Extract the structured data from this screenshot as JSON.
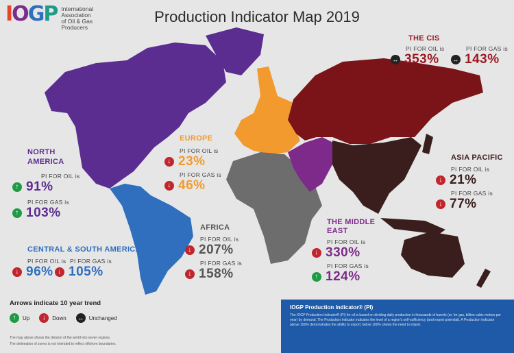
{
  "title": "Production Indicator Map 2019",
  "logo": {
    "mark": [
      "I",
      "O",
      "G",
      "P"
    ],
    "text_lines": [
      "International",
      "Association",
      "of Oil & Gas",
      "Producers"
    ]
  },
  "colors": {
    "north_america": "#5c2d91",
    "central_south_america": "#2f6fbe",
    "europe": "#f39a2e",
    "africa": "#6d6d6d",
    "cis": "#7a1419",
    "middle_east": "#7d2a8a",
    "asia_pacific": "#3a1e1e",
    "up": "#1f9b46",
    "down": "#c0262d",
    "unchanged": "#222222"
  },
  "regions": {
    "north_america": {
      "name_lines": [
        "NORTH",
        "AMERICA"
      ],
      "oil_label": "PI FOR OIL is",
      "oil_value": "91%",
      "oil_trend": "up",
      "gas_label": "PI FOR GAS is",
      "gas_value": "103%",
      "gas_trend": "up"
    },
    "central_south_america": {
      "name": "CENTRAL & SOUTH AMERICA",
      "oil_label": "PI FOR OIL is",
      "oil_value": "96%",
      "oil_trend": "down",
      "gas_label": "PI FOR GAS is",
      "gas_value": "105%",
      "gas_trend": "down"
    },
    "europe": {
      "name": "EUROPE",
      "oil_label": "PI FOR OIL is",
      "oil_value": "23%",
      "oil_trend": "down",
      "gas_label": "PI FOR GAS is",
      "gas_value": "46%",
      "gas_trend": "down"
    },
    "africa": {
      "name": "AFRICA",
      "oil_label": "PI FOR OIL is",
      "oil_value": "207%",
      "oil_trend": "down",
      "gas_label": "PI FOR GAS is",
      "gas_value": "158%",
      "gas_trend": "down"
    },
    "cis": {
      "name": "THE CIS",
      "oil_label": "PI FOR OIL is",
      "oil_value": "353%",
      "oil_trend": "unchanged",
      "gas_label": "PI FOR GAS is",
      "gas_value": "143%",
      "gas_trend": "unchanged"
    },
    "middle_east": {
      "name_lines": [
        "THE MIDDLE",
        "EAST"
      ],
      "oil_label": "PI FOR OIL is",
      "oil_value": "330%",
      "oil_trend": "down",
      "gas_label": "PI FOR GAS is",
      "gas_value": "124%",
      "gas_trend": "up"
    },
    "asia_pacific": {
      "name": "ASIA PACIFIC",
      "oil_label": "PI FOR OIL is",
      "oil_value": "21%",
      "oil_trend": "down",
      "gas_label": "PI FOR GAS is",
      "gas_value": "77%",
      "gas_trend": "down"
    }
  },
  "legend": {
    "title": "Arrows indicate 10 year trend",
    "up": "Up",
    "down": "Down",
    "unchanged": "Unchanged"
  },
  "footnote_lines": [
    "The map above shows the division of the world into seven regions.",
    "The delineation of zones is not intended to reflect offshore boundaries."
  ],
  "infobox": {
    "title": "IOGP Production Indicator® (PI)",
    "text": "The IOGP Production Indicator® (PI) for oil is based on dividing daily production in thousands of barrels (or, for gas, billion cubic metres per year) by demand. The Production Indicator indicates the level of a region's self-sufficiency (and export potential). A Production Indicator above 100% demonstrates the ability to export; below 100% shows the need to import."
  }
}
